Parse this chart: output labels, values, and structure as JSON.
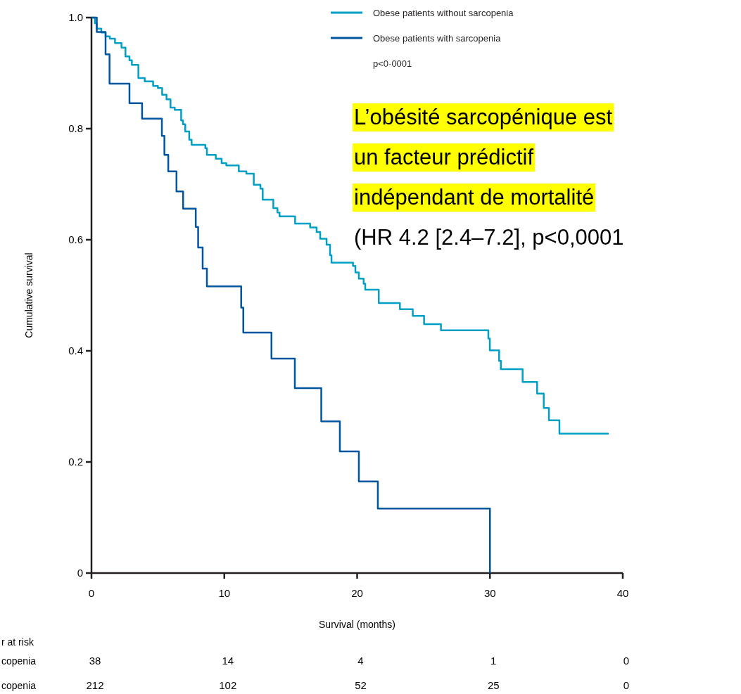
{
  "chart_data": {
    "type": "step",
    "xlabel": "Survival (months)",
    "ylabel": "Cumulative survival",
    "xlim": [
      0,
      40
    ],
    "xticks": [
      0,
      10,
      20,
      30,
      40
    ],
    "ylim": [
      0,
      1
    ],
    "yticks": [
      0,
      0.2,
      0.4,
      0.6,
      0.8,
      {
        "value": 1,
        "label": "1.0"
      }
    ],
    "legend": "top right",
    "grid": false,
    "series": [
      {
        "name": "Obese patients without sarcopenia",
        "color": "#00a0c6",
        "x": [
          0,
          0.26,
          0.39,
          0.74,
          1.06,
          1.38,
          1.77,
          2.26,
          2.56,
          2.86,
          3.04,
          3.53,
          4.01,
          4.64,
          5.0,
          5.32,
          5.65,
          5.95,
          6.27,
          6.75,
          6.89,
          7.06,
          7.36,
          7.54,
          8.57,
          8.69,
          9.36,
          9.8,
          10.15,
          11.09,
          11.66,
          12.22,
          12.72,
          12.89,
          13.69,
          14.0,
          14.16,
          15.33,
          16.46,
          16.95,
          17.22,
          17.7,
          17.96,
          18.07,
          19.69,
          19.87,
          20.13,
          20.49,
          20.61,
          21.63,
          23.22,
          24.19,
          25.04,
          26.31,
          29.88,
          29.99,
          30.69,
          30.82,
          32.46,
          33.55,
          34.05,
          34.44,
          35.23,
          38.94
        ],
        "values": [
          1,
          0.99,
          0.98,
          0.973,
          0.966,
          0.962,
          0.954,
          0.946,
          0.93,
          0.923,
          0.915,
          0.891,
          0.885,
          0.877,
          0.873,
          0.861,
          0.853,
          0.838,
          0.834,
          0.815,
          0.808,
          0.795,
          0.78,
          0.771,
          0.765,
          0.753,
          0.746,
          0.738,
          0.734,
          0.723,
          0.719,
          0.699,
          0.692,
          0.672,
          0.657,
          0.649,
          0.642,
          0.629,
          0.622,
          0.614,
          0.602,
          0.591,
          0.572,
          0.559,
          0.553,
          0.541,
          0.53,
          0.521,
          0.51,
          0.486,
          0.475,
          0.463,
          0.448,
          0.437,
          0.422,
          0.401,
          0.382,
          0.367,
          0.344,
          0.323,
          0.297,
          0.275,
          0.251,
          0.251
        ]
      },
      {
        "name": "Obese patients with sarcopenia",
        "color": "#0055a0",
        "x": [
          0,
          0.4,
          1.06,
          1.36,
          2.86,
          3.81,
          5.3,
          5.49,
          5.78,
          6.4,
          6.9,
          7.85,
          8.03,
          8.37,
          8.69,
          11.27,
          11.43,
          13.55,
          15.31,
          17.3,
          18.7,
          20.13,
          21.56,
          30.0
        ],
        "values": [
          1,
          0.974,
          0.934,
          0.881,
          0.846,
          0.818,
          0.787,
          0.753,
          0.723,
          0.687,
          0.656,
          0.623,
          0.586,
          0.548,
          0.516,
          0.478,
          0.433,
          0.386,
          0.333,
          0.273,
          0.219,
          0.165,
          0.116,
          0
        ]
      }
    ],
    "annotations": [
      "p<0·0001",
      "L’obésité sarcopénique est",
      "un facteur prédictif",
      "indépendant de mortalité",
      "(HR 4.2 [2.4–7.2], p<0,0001",
      "r at risk",
      "copenia",
      "38",
      "14",
      "4",
      "1",
      "0",
      "copenia",
      "212",
      "102",
      "52",
      "25",
      "0"
    ]
  }
}
